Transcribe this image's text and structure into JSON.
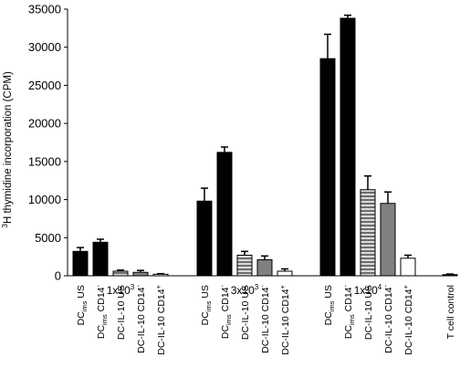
{
  "chart_data": {
    "type": "bar",
    "ylabel": {
      "sup": "3",
      "text": "H thymidine incorporation (CPM)"
    },
    "ylim": [
      0,
      35000
    ],
    "yticks": [
      "0",
      "5000",
      "10000",
      "15000",
      "20000",
      "25000",
      "30000",
      "35000"
    ],
    "groups": [
      {
        "label": {
          "base": "1x10",
          "sup": "3"
        }
      },
      {
        "label": {
          "base": "3x10",
          "sup": "3"
        }
      },
      {
        "label": {
          "base": "1x10",
          "sup": "4"
        }
      }
    ],
    "series": [
      {
        "label": {
          "pre": "DC",
          "sub": "ims",
          "post": " US",
          "sup": ""
        },
        "fill": "black",
        "values": [
          3200,
          9800,
          28500
        ],
        "errors": [
          500,
          1700,
          3200
        ]
      },
      {
        "label": {
          "pre": "DC",
          "sub": "ims",
          "post": " CD14",
          "sup": "-"
        },
        "fill": "black",
        "values": [
          4400,
          16200,
          33800
        ],
        "errors": [
          400,
          700,
          400
        ]
      },
      {
        "label": {
          "pre": "DC-IL-10 US",
          "sub": "",
          "post": "",
          "sup": ""
        },
        "fill": "stripe",
        "values": [
          600,
          2700,
          11300
        ],
        "errors": [
          150,
          500,
          1800
        ]
      },
      {
        "label": {
          "pre": "DC-IL-10 CD14",
          "sub": "",
          "post": "",
          "sup": "-"
        },
        "fill": "gray",
        "values": [
          450,
          2100,
          9500
        ],
        "errors": [
          250,
          500,
          1500
        ]
      },
      {
        "label": {
          "pre": "DC-IL-10 CD14",
          "sub": "",
          "post": "",
          "sup": "+"
        },
        "fill": "white",
        "values": [
          200,
          600,
          2300
        ],
        "errors": [
          80,
          300,
          400
        ]
      }
    ],
    "control": {
      "label": "T cell control",
      "value": 150,
      "error": 80
    },
    "colors": {
      "black": "#000000",
      "gray": "#808080",
      "white": "#ffffff",
      "stripe_light": "#d9d9d9",
      "stripe_dark": "#6e6e6e"
    }
  }
}
